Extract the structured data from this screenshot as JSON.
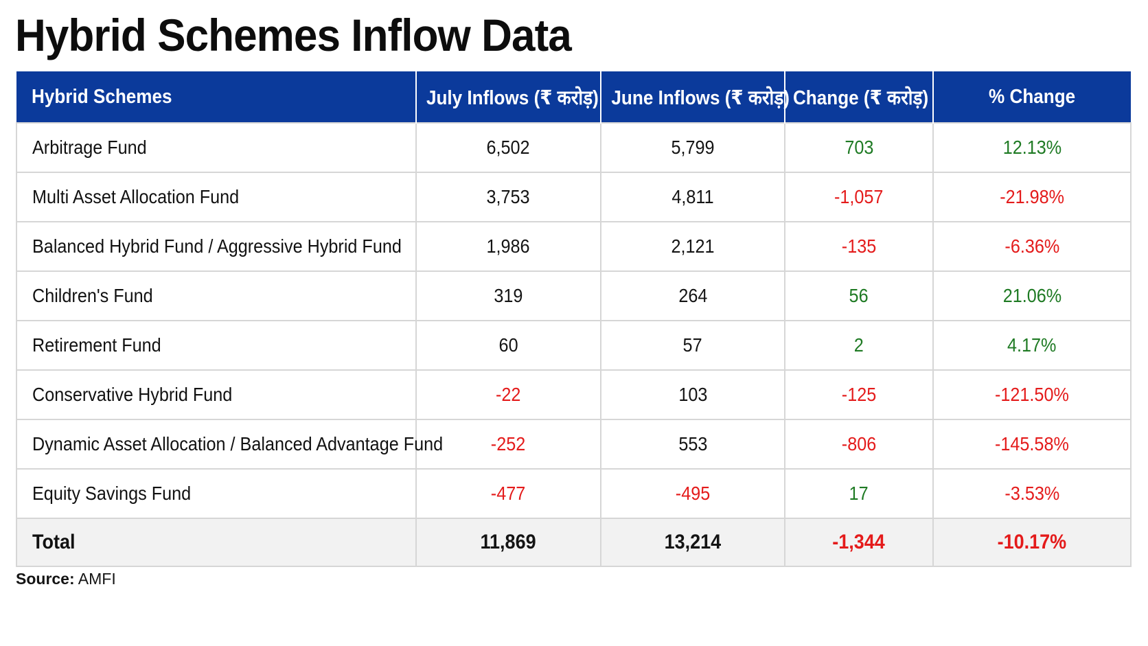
{
  "page": {
    "title": "Hybrid Schemes Inflow Data"
  },
  "table": {
    "headers": [
      "Hybrid Schemes",
      "July Inflows (₹ करोड़)",
      "June Inflows (₹ करोड़)",
      "Change (₹ करोड़)",
      "% Change"
    ],
    "rows": [
      {
        "scheme": "Arbitrage Fund",
        "july": "6,502",
        "june": "5,799",
        "change": "703",
        "pct": "12.13%"
      },
      {
        "scheme": "Multi Asset Allocation Fund",
        "july": "3,753",
        "june": "4,811",
        "change": "-1,057",
        "pct": "-21.98%"
      },
      {
        "scheme": "Balanced Hybrid Fund / Aggressive Hybrid Fund",
        "july": "1,986",
        "june": "2,121",
        "change": "-135",
        "pct": "-6.36%"
      },
      {
        "scheme": "Children's Fund",
        "july": "319",
        "june": "264",
        "change": "56",
        "pct": "21.06%"
      },
      {
        "scheme": "Retirement Fund",
        "july": "60",
        "june": "57",
        "change": "2",
        "pct": "4.17%"
      },
      {
        "scheme": "Conservative Hybrid Fund",
        "july": "-22",
        "june": "103",
        "change": "-125",
        "pct": "-121.50%"
      },
      {
        "scheme": "Dynamic Asset Allocation / Balanced Advantage Fund",
        "july": "-252",
        "june": "553",
        "change": "-806",
        "pct": "-145.58%"
      },
      {
        "scheme": "Equity Savings Fund",
        "july": "-477",
        "june": "-495",
        "change": "17",
        "pct": "-3.53%"
      }
    ],
    "total": {
      "scheme": "Total",
      "july": "11,869",
      "june": "13,214",
      "change": "-1,344",
      "pct": "-10.17%"
    }
  },
  "source": {
    "label": "Source:",
    "value": "AMFI"
  },
  "colors": {
    "header_bg": "#0b3a9b",
    "positive": "#1e7a23",
    "negative": "#e41b1b",
    "total_bg": "#f2f2f2"
  }
}
